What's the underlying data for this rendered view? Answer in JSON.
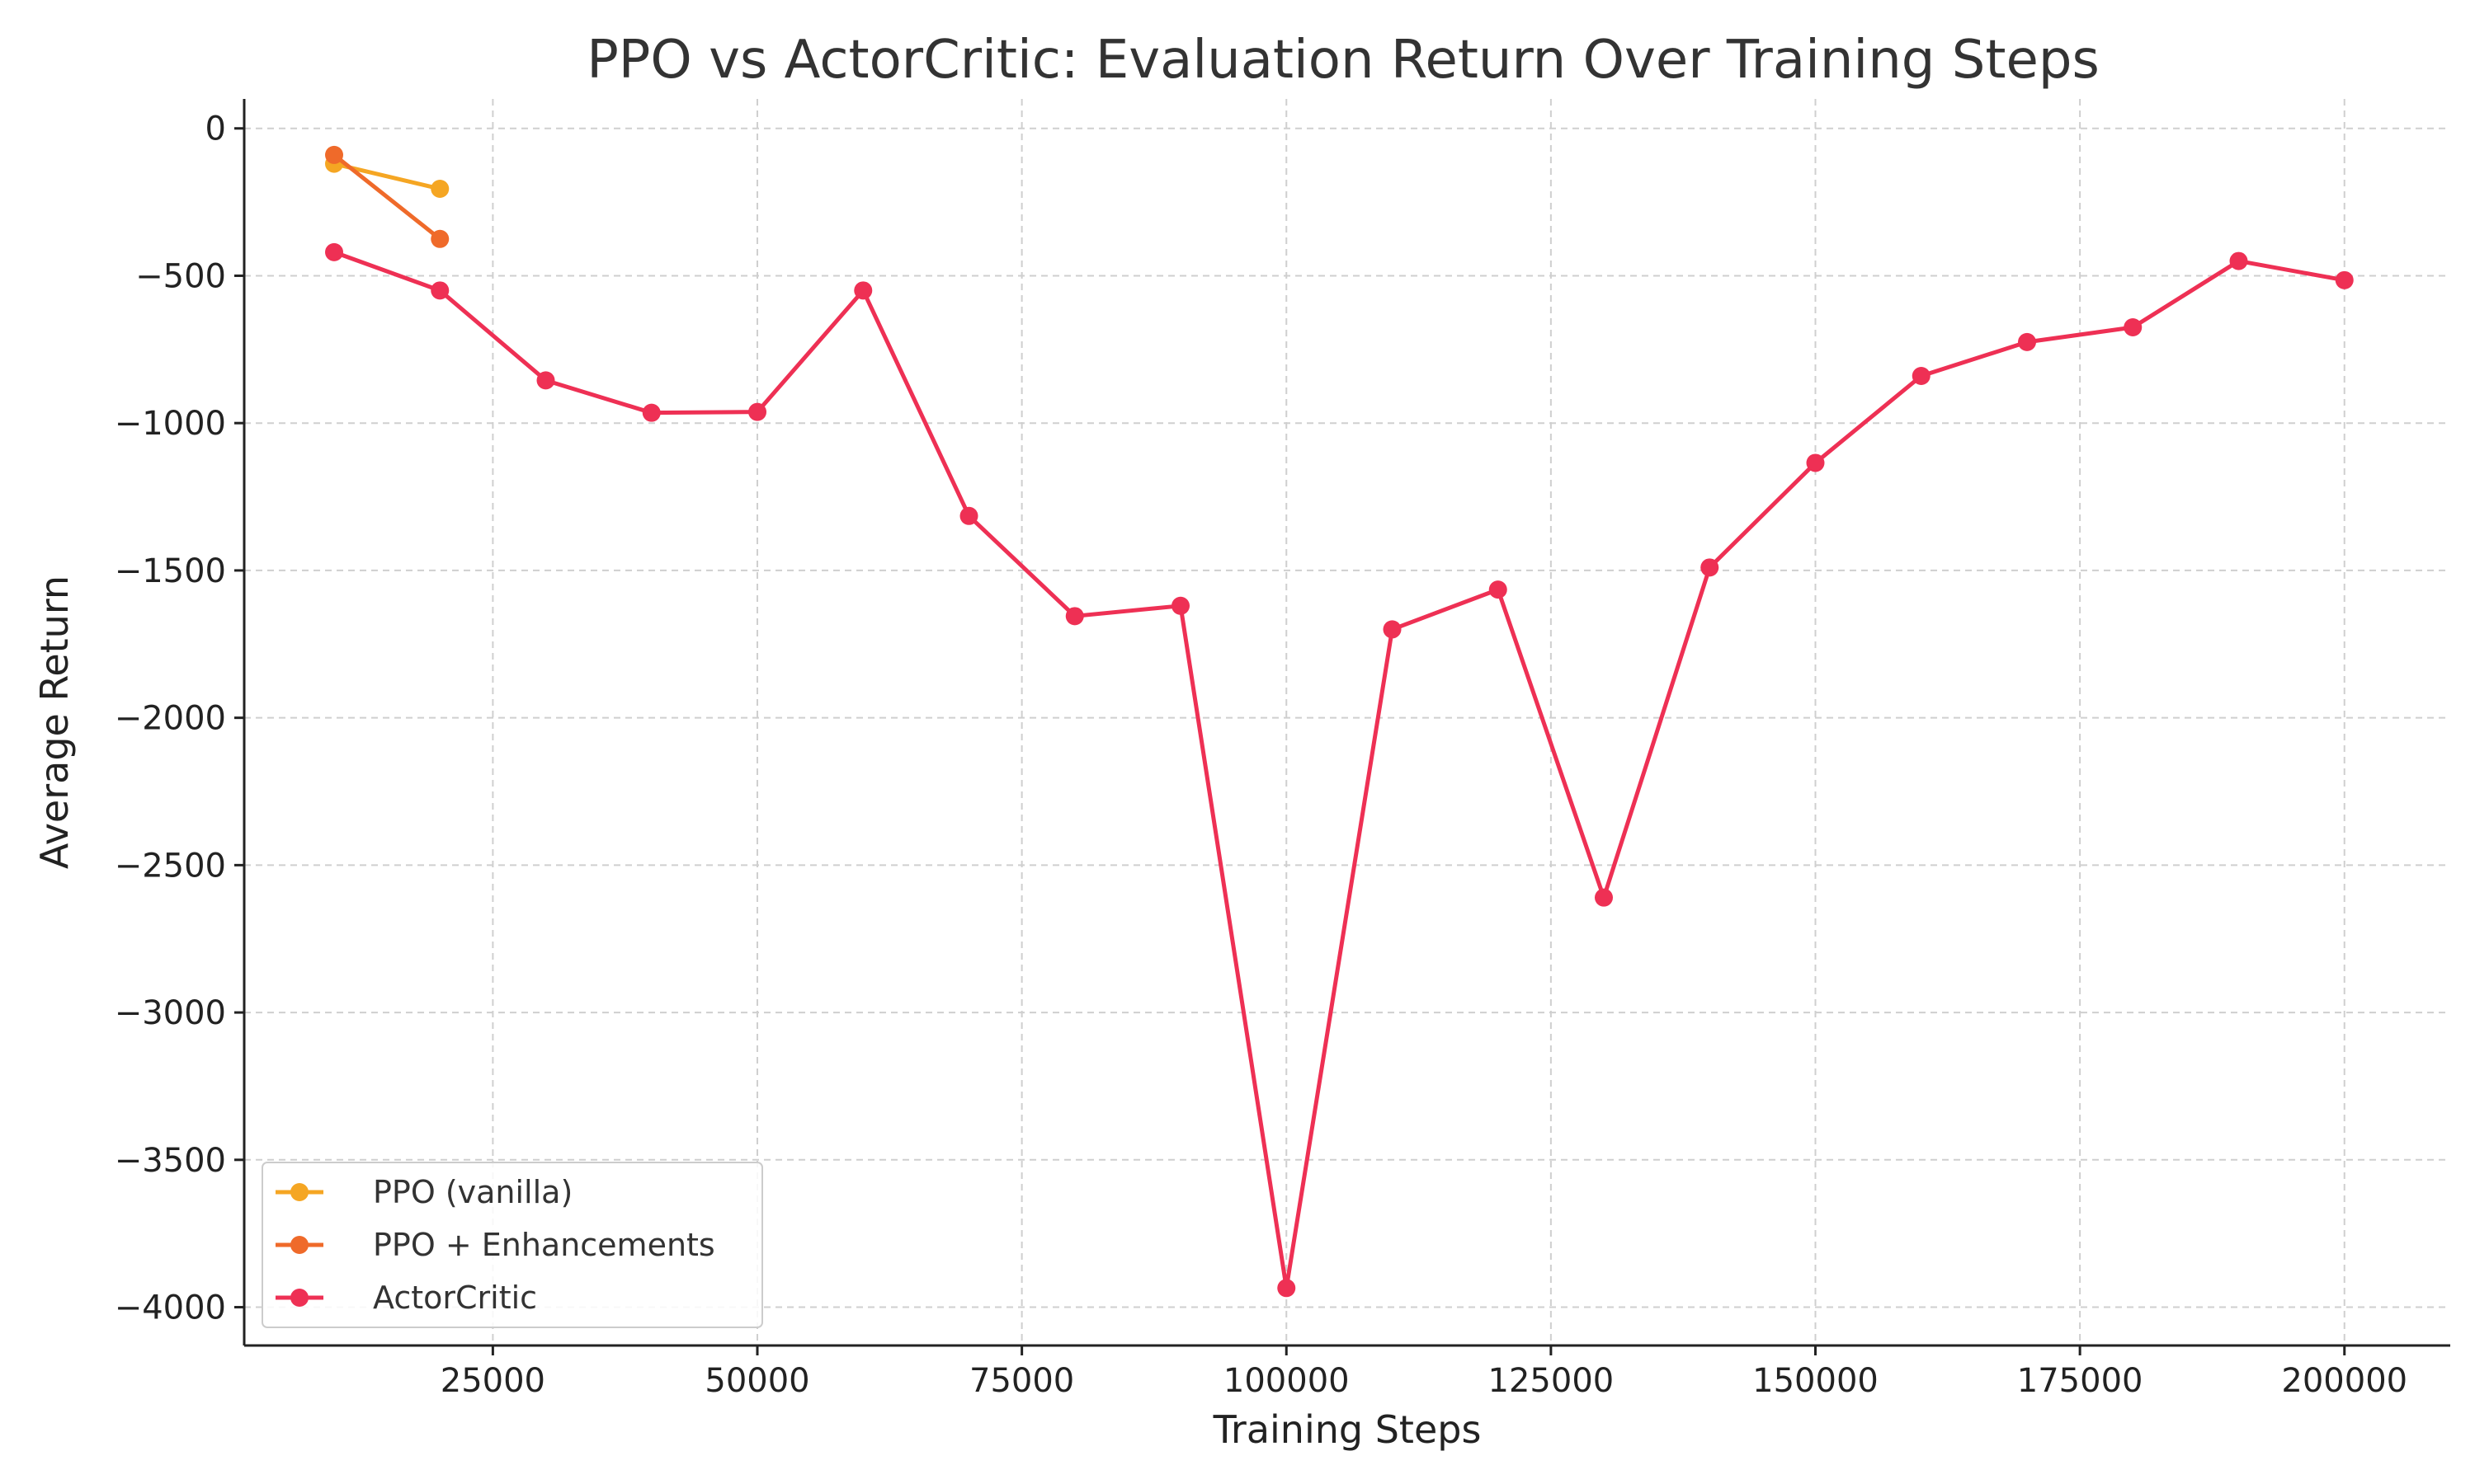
{
  "chart_data": {
    "type": "line",
    "title": "PPO vs ActorCritic: Evaluation Return Over Training Steps",
    "xlabel": "Training Steps",
    "ylabel": "Average Return",
    "xlim": [
      1500,
      210000
    ],
    "ylim": [
      -4130,
      100
    ],
    "x_ticks": [
      25000,
      50000,
      75000,
      100000,
      125000,
      150000,
      175000,
      200000
    ],
    "x_tick_labels": [
      "25000",
      "50000",
      "75000",
      "100000",
      "125000",
      "150000",
      "175000",
      "200000"
    ],
    "y_ticks": [
      0,
      -500,
      -1000,
      -1500,
      -2000,
      -2500,
      -3000,
      -3500,
      -4000
    ],
    "y_tick_labels": [
      "0",
      "−500",
      "−1000",
      "−1500",
      "−2000",
      "−2500",
      "−3000",
      "−3500",
      "−4000"
    ],
    "grid": true,
    "legend_position": "lower-left",
    "series": [
      {
        "name": "PPO (vanilla)",
        "color": "#f5a623",
        "x": [
          10000,
          20000
        ],
        "y": [
          -120,
          -205
        ]
      },
      {
        "name": "PPO + Enhancements",
        "color": "#ef6a2a",
        "x": [
          10000,
          20000
        ],
        "y": [
          -90,
          -375
        ]
      },
      {
        "name": "ActorCritic",
        "color": "#ee3054",
        "x": [
          10000,
          20000,
          30000,
          40000,
          50000,
          60000,
          70000,
          80000,
          90000,
          100000,
          110000,
          120000,
          130000,
          140000,
          150000,
          160000,
          170000,
          180000,
          190000,
          200000
        ],
        "y": [
          -420,
          -550,
          -855,
          -965,
          -962,
          -550,
          -1315,
          -1655,
          -1620,
          -3935,
          -1700,
          -1565,
          -2610,
          -1490,
          -1135,
          -840,
          -725,
          -675,
          -450,
          -515
        ]
      }
    ]
  }
}
